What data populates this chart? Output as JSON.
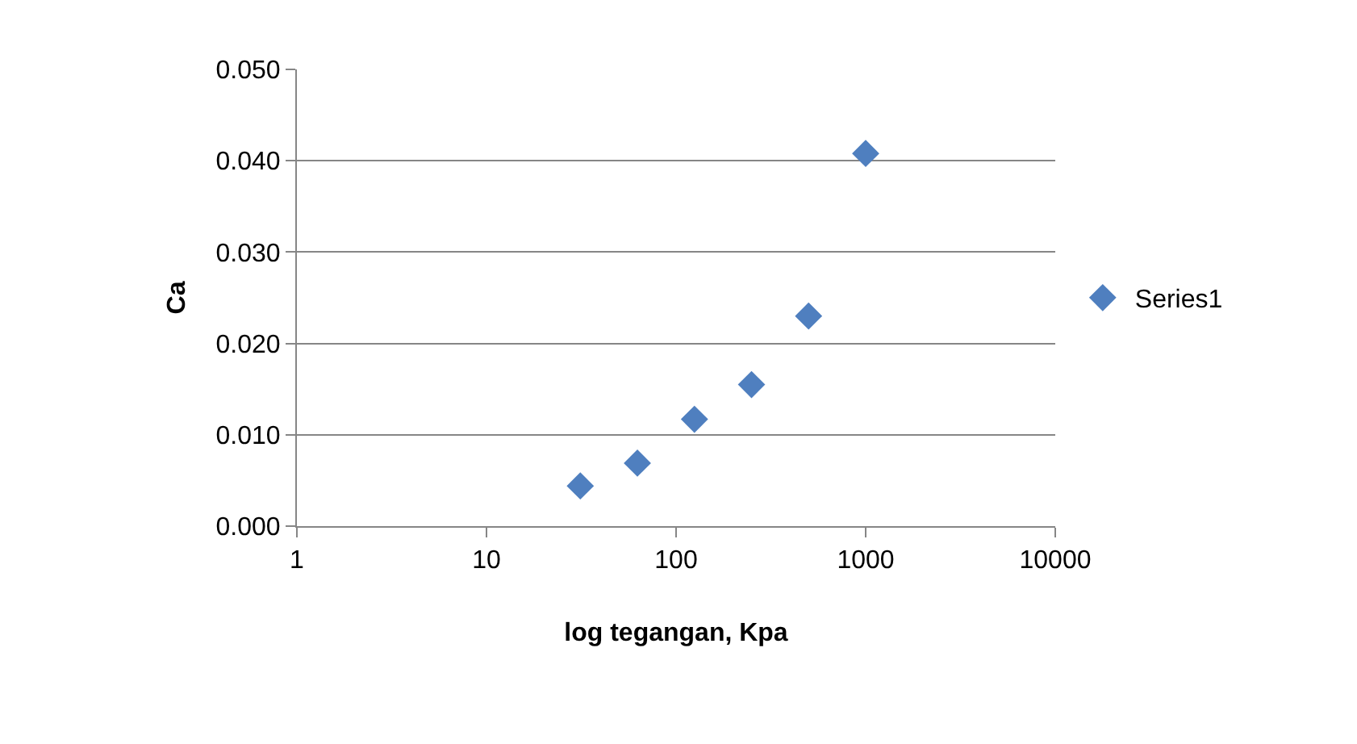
{
  "chart_data": {
    "type": "scatter",
    "xlabel": "log tegangan, Kpa",
    "ylabel": "Ca",
    "log": "x",
    "x": [
      31.25,
      62.5,
      125,
      250,
      500,
      1000
    ],
    "series": [
      {
        "name": "Series1",
        "color": "#4f7fbf",
        "values": [
          0.0044,
          0.0069,
          0.0117,
          0.0155,
          0.023,
          0.0408
        ]
      }
    ],
    "xlim": [
      1,
      10000
    ],
    "xticks": [
      1,
      10,
      100,
      1000,
      10000
    ],
    "ylim": [
      0,
      0.05
    ],
    "yticks": [
      {
        "value": 0,
        "label": "0.000"
      },
      {
        "value": 0.01,
        "label": "0.010"
      },
      {
        "value": 0.02,
        "label": "0.020"
      },
      {
        "value": 0.03,
        "label": "0.030"
      },
      {
        "value": 0.04,
        "label": "0.040"
      },
      {
        "value": 0.05,
        "label": "0.050"
      }
    ],
    "grid": "y",
    "legend": "right",
    "marker": "diamond"
  }
}
